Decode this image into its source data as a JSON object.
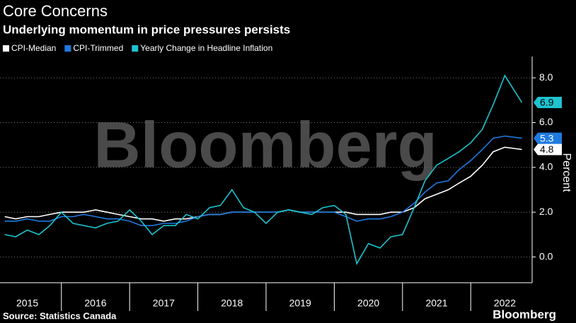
{
  "chart_data": {
    "type": "line",
    "title": "Core Concerns",
    "subtitle": "Underlying momentum in price pressures persists",
    "y_label": "Percent",
    "source": "Source: Statistics Canada",
    "watermark": "Bloomberg",
    "brand": "Bloomberg",
    "x": [
      2015.17,
      2015.33,
      2015.5,
      2015.67,
      2015.83,
      2016,
      2016.17,
      2016.33,
      2016.5,
      2016.67,
      2016.83,
      2017,
      2017.17,
      2017.33,
      2017.5,
      2017.67,
      2017.83,
      2018,
      2018.17,
      2018.33,
      2018.5,
      2018.67,
      2018.83,
      2019,
      2019.17,
      2019.33,
      2019.5,
      2019.67,
      2019.83,
      2020,
      2020.17,
      2020.33,
      2020.5,
      2020.67,
      2020.83,
      2021,
      2021.17,
      2021.33,
      2021.5,
      2021.67,
      2021.83,
      2022,
      2022.17,
      2022.33,
      2022.5,
      2022.75
    ],
    "series": [
      {
        "name": "CPI-Median",
        "color": "#ffffff",
        "values": [
          1.8,
          1.7,
          1.8,
          1.8,
          1.9,
          2.0,
          2.0,
          2.0,
          2.1,
          2.0,
          1.9,
          1.8,
          1.7,
          1.7,
          1.6,
          1.7,
          1.7,
          1.8,
          1.9,
          1.9,
          2.0,
          2.0,
          2.0,
          2.0,
          2.0,
          2.1,
          2.0,
          2.0,
          2.0,
          2.0,
          2.0,
          1.9,
          1.9,
          1.9,
          2.0,
          2.0,
          2.2,
          2.6,
          2.8,
          3.0,
          3.3,
          3.6,
          4.1,
          4.7,
          4.9,
          4.8
        ]
      },
      {
        "name": "CPI-Trimmed",
        "color": "#1f7ae0",
        "values": [
          1.6,
          1.6,
          1.7,
          1.6,
          1.6,
          1.8,
          1.8,
          1.9,
          1.8,
          1.7,
          1.7,
          1.6,
          1.4,
          1.4,
          1.5,
          1.5,
          1.6,
          1.8,
          1.9,
          1.9,
          2.0,
          2.0,
          2.0,
          2.0,
          2.0,
          2.1,
          2.0,
          2.0,
          2.0,
          2.0,
          1.8,
          1.6,
          1.7,
          1.7,
          1.8,
          2.0,
          2.4,
          2.9,
          3.3,
          3.4,
          3.9,
          4.3,
          4.8,
          5.3,
          5.4,
          5.3
        ]
      },
      {
        "name": "Yearly Change in Headline Inflation",
        "color": "#1ec3cf",
        "values": [
          1.0,
          0.9,
          1.2,
          1.0,
          1.4,
          2.0,
          1.5,
          1.4,
          1.3,
          1.5,
          1.6,
          2.1,
          1.6,
          1.0,
          1.4,
          1.4,
          1.9,
          1.7,
          2.2,
          2.3,
          3.0,
          2.2,
          2.0,
          1.5,
          2.0,
          2.1,
          2.0,
          1.9,
          2.2,
          2.3,
          1.9,
          -0.3,
          0.6,
          0.4,
          0.9,
          1.0,
          2.2,
          3.4,
          4.1,
          4.4,
          4.7,
          5.1,
          5.7,
          6.8,
          8.1,
          6.9
        ]
      }
    ],
    "xlim": [
      2015.1,
      2022.9
    ],
    "xticks": [
      {
        "value": 2015.5,
        "label": "2015"
      },
      {
        "value": 2016.5,
        "label": "2016"
      },
      {
        "value": 2017.5,
        "label": "2017"
      },
      {
        "value": 2018.5,
        "label": "2018"
      },
      {
        "value": 2019.5,
        "label": "2019"
      },
      {
        "value": 2020.5,
        "label": "2020"
      },
      {
        "value": 2021.5,
        "label": "2021"
      },
      {
        "value": 2022.5,
        "label": "2022"
      }
    ],
    "ylim": [
      -1.15,
      8.95
    ],
    "yticks": [
      {
        "value": 0,
        "label": "0.0"
      },
      {
        "value": 2,
        "label": "2.0"
      },
      {
        "value": 4,
        "label": "4.0"
      },
      {
        "value": 6,
        "label": "6.0"
      },
      {
        "value": 8,
        "label": "8.0"
      }
    ],
    "grid": true
  }
}
